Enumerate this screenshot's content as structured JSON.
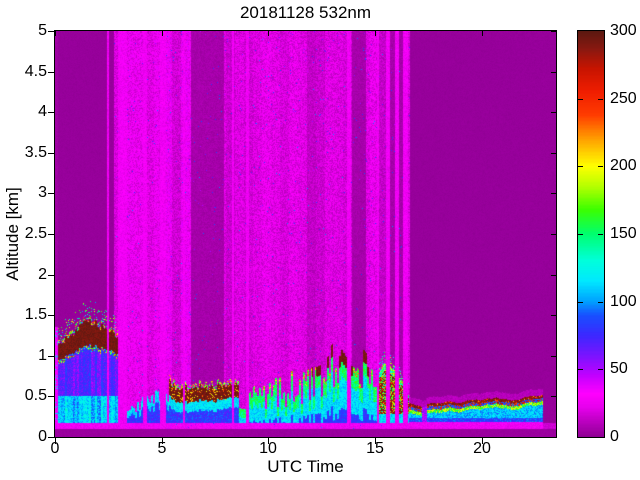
{
  "chart_data": {
    "type": "heatmap",
    "title": "20181128 532nm",
    "x_axis": {
      "label": "UTC Time",
      "range": [
        0,
        23.47
      ],
      "ticks": [
        0,
        5,
        10,
        15,
        20
      ]
    },
    "y_axis": {
      "label": "Altitude [km]",
      "range": [
        0,
        5
      ],
      "ticks": [
        0,
        0.5,
        1,
        1.5,
        2,
        2.5,
        3,
        3.5,
        4,
        4.5,
        5
      ]
    },
    "colorbar": {
      "range": [
        0,
        300
      ],
      "ticks": [
        0,
        50,
        100,
        150,
        200,
        250,
        300
      ],
      "colormap": [
        [
          0,
          "#8E0092"
        ],
        [
          22,
          "#E600EC"
        ],
        [
          32,
          "#FF00FF"
        ],
        [
          45,
          "#C400FF"
        ],
        [
          60,
          "#7A14FF"
        ],
        [
          75,
          "#3C28FF"
        ],
        [
          90,
          "#1850FF"
        ],
        [
          100,
          "#00A0FF"
        ],
        [
          115,
          "#00E8FF"
        ],
        [
          130,
          "#00FFDC"
        ],
        [
          150,
          "#00FF6E"
        ],
        [
          168,
          "#3CFF00"
        ],
        [
          185,
          "#B4FF00"
        ],
        [
          200,
          "#FFFF00"
        ],
        [
          220,
          "#FFA000"
        ],
        [
          238,
          "#FF3C00"
        ],
        [
          255,
          "#F01E00"
        ],
        [
          272,
          "#C81400"
        ],
        [
          286,
          "#8C1810"
        ],
        [
          300,
          "#5A1810"
        ]
      ]
    },
    "features": {
      "clean_background_value": 2,
      "surface_dark_top_km": 0.1,
      "surface_line_km": [
        0.1,
        0.17
      ],
      "daytime_noise": {
        "t_range": [
          2.75,
          16.62
        ],
        "base_value": 17,
        "bright_zone": [
          2.75,
          6.35
        ],
        "dark_bands": [
          [
            6.35,
            7.9
          ],
          [
            13.9,
            14.55
          ],
          [
            15.7,
            16.3
          ]
        ],
        "dark_value": 6,
        "stripe_value": 26,
        "bright_stripes": [
          [
            2.42,
            2.54
          ],
          [
            2.95,
            3.35
          ],
          [
            4.13,
            4.32
          ],
          [
            4.93,
            5.21
          ],
          [
            6.0,
            6.1
          ],
          [
            8.27,
            8.4
          ],
          [
            8.97,
            9.11
          ],
          [
            13.67,
            13.86
          ],
          [
            15.07,
            15.16
          ],
          [
            15.5,
            15.69
          ],
          [
            15.92,
            16.1
          ],
          [
            16.3,
            16.53
          ]
        ]
      },
      "startup_column": {
        "t_range": [
          0,
          0.12
        ],
        "z_max": 1.35
      },
      "morning_cloud": {
        "t_range": [
          0,
          2.95
        ],
        "base_pts": [
          [
            0,
            0.93
          ],
          [
            0.5,
            0.98
          ],
          [
            1.0,
            1.07
          ],
          [
            1.5,
            1.12
          ],
          [
            1.9,
            1.12
          ],
          [
            2.3,
            1.08
          ],
          [
            2.6,
            1.06
          ],
          [
            2.95,
            1.02
          ]
        ],
        "thickness_pts": [
          [
            0,
            0.18
          ],
          [
            0.7,
            0.22
          ],
          [
            1.3,
            0.3
          ],
          [
            1.9,
            0.28
          ],
          [
            2.5,
            0.25
          ],
          [
            2.95,
            0.22
          ]
        ],
        "value": 290
      },
      "pre_noon_bl": {
        "t_range": [
          2.95,
          5.35
        ],
        "height_pts": [
          [
            2.95,
            0.46
          ],
          [
            3.5,
            0.4
          ],
          [
            4.0,
            0.42
          ],
          [
            4.25,
            0.7
          ],
          [
            4.45,
            0.46
          ],
          [
            4.85,
            0.6
          ],
          [
            5.0,
            0.5
          ],
          [
            5.15,
            0.55
          ],
          [
            5.35,
            0.5
          ]
        ]
      },
      "midday_clouds": {
        "t_range": [
          5.35,
          8.6
        ],
        "base_pts": [
          [
            5.35,
            0.5
          ],
          [
            5.6,
            0.44
          ],
          [
            6.0,
            0.42
          ],
          [
            6.5,
            0.44
          ],
          [
            7.0,
            0.46
          ],
          [
            7.5,
            0.44
          ],
          [
            8.0,
            0.48
          ],
          [
            8.6,
            0.5
          ]
        ],
        "thickness_km": 0.15,
        "value": 290
      },
      "spiky_bl": {
        "t_range": [
          8.6,
          15.2
        ],
        "height_pts": [
          [
            8.6,
            0.4
          ],
          [
            9.5,
            0.62
          ],
          [
            10.5,
            0.68
          ],
          [
            11.0,
            0.78
          ],
          [
            11.7,
            0.72
          ],
          [
            12.3,
            0.85
          ],
          [
            12.8,
            1.02
          ],
          [
            13.4,
            1.12
          ],
          [
            13.9,
            1.08
          ],
          [
            14.4,
            1.0
          ],
          [
            14.8,
            0.95
          ],
          [
            15.2,
            0.88
          ]
        ]
      },
      "afternoon_mass": {
        "t_range": [
          15.2,
          16.6
        ],
        "top_pts": [
          [
            15.2,
            0.78
          ],
          [
            15.45,
            0.92
          ],
          [
            15.7,
            0.86
          ],
          [
            16.0,
            0.8
          ],
          [
            16.3,
            0.66
          ],
          [
            16.6,
            0.5
          ]
        ],
        "base_km": 0.28
      },
      "night_layer": {
        "t_range": [
          16.62,
          22.85
        ],
        "line_pts": [
          [
            16.62,
            0.4
          ],
          [
            17.0,
            0.38
          ],
          [
            17.25,
            0.35
          ],
          [
            17.5,
            0.4
          ],
          [
            18.0,
            0.41
          ],
          [
            18.5,
            0.44
          ],
          [
            18.8,
            0.42
          ],
          [
            19.5,
            0.42
          ],
          [
            20.0,
            0.44
          ],
          [
            20.5,
            0.46
          ],
          [
            21.0,
            0.44
          ],
          [
            21.6,
            0.43
          ],
          [
            22.0,
            0.46
          ],
          [
            22.4,
            0.48
          ],
          [
            22.85,
            0.5
          ]
        ],
        "gap_t": [
          17.2,
          17.42
        ]
      }
    }
  }
}
